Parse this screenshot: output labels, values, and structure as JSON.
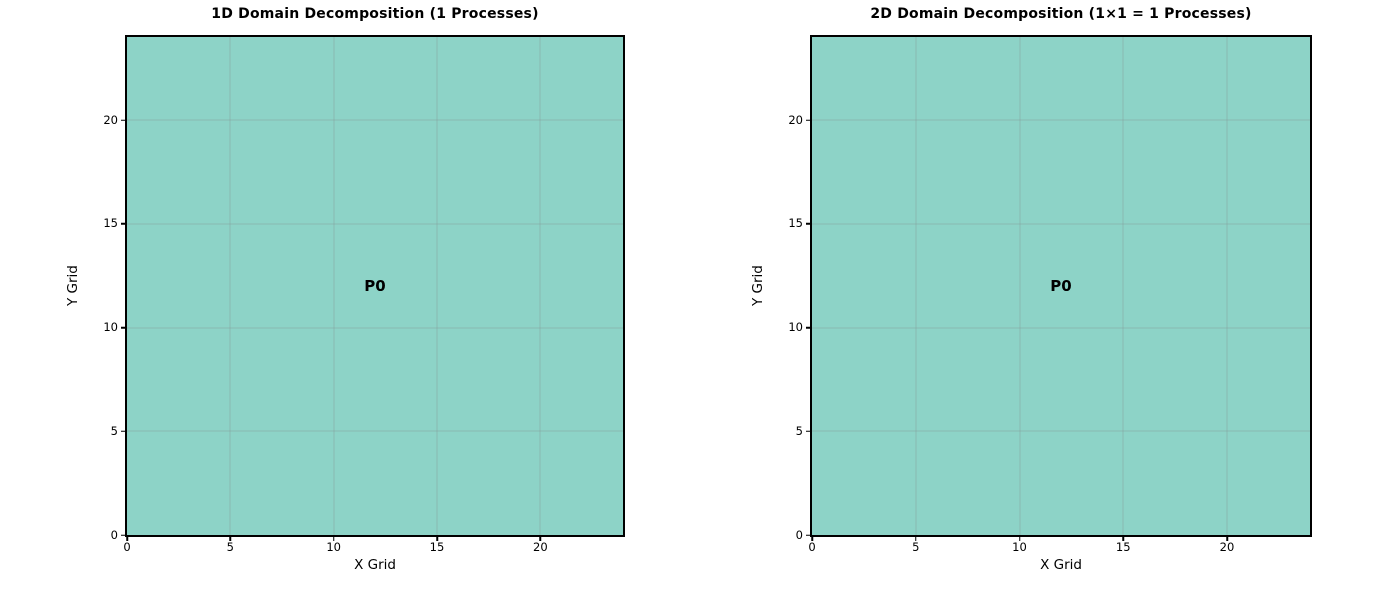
{
  "page": {
    "background": "#ffffff"
  },
  "chart_data": [
    {
      "type": "heatmap",
      "title": "1D Domain Decomposition (1 Processes)",
      "xlabel": "X Grid",
      "ylabel": "Y Grid",
      "xlim": [
        0,
        24
      ],
      "ylim": [
        0,
        24
      ],
      "xticks": [
        0,
        5,
        10,
        15,
        20
      ],
      "yticks": [
        0,
        5,
        10,
        15,
        20
      ],
      "grid": true,
      "grid_color": "rgba(128,128,128,0.3)",
      "border_color": "#000000",
      "legend": "none",
      "regions": [
        {
          "label": "P0",
          "x0": 0,
          "x1": 24,
          "y0": 0,
          "y1": 24,
          "fill": "#8DD3C7",
          "label_color": "#000000"
        }
      ]
    },
    {
      "type": "heatmap",
      "title": "2D Domain Decomposition (1×1 = 1 Processes)",
      "xlabel": "X Grid",
      "ylabel": "Y Grid",
      "xlim": [
        0,
        24
      ],
      "ylim": [
        0,
        24
      ],
      "xticks": [
        0,
        5,
        10,
        15,
        20
      ],
      "yticks": [
        0,
        5,
        10,
        15,
        20
      ],
      "grid": true,
      "grid_color": "rgba(128,128,128,0.3)",
      "border_color": "#000000",
      "legend": "none",
      "regions": [
        {
          "label": "P0",
          "x0": 0,
          "x1": 24,
          "y0": 0,
          "y1": 24,
          "fill": "#8DD3C7",
          "label_color": "#000000"
        }
      ]
    }
  ]
}
